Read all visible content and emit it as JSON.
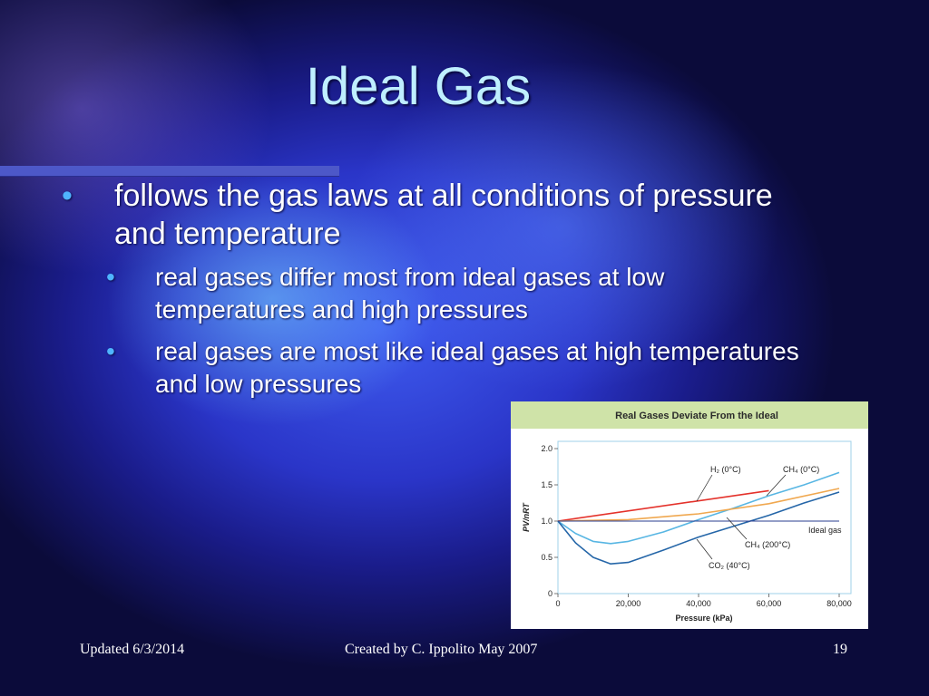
{
  "slide": {
    "title": "Ideal Gas",
    "bullets": [
      "follows the gas laws at all conditions of pressure and temperature"
    ],
    "sub_bullets": [
      "real gases differ most from ideal gases at low temperatures and high pressures",
      "real gases are most like ideal gases at high temperatures and low pressures"
    ],
    "footer": {
      "left": "Updated 6/3/2014",
      "center": "Created by C. Ippolito May 2007",
      "right": "19"
    }
  },
  "chart_data": {
    "type": "line",
    "title": "Real Gases Deviate From the Ideal",
    "xlabel": "Pressure (kPa)",
    "ylabel": "PV/nRT",
    "xlim": [
      0,
      80000
    ],
    "ylim": [
      0,
      2.0
    ],
    "x_ticks": [
      "0",
      "20,000",
      "40,000",
      "60,000",
      "80,000"
    ],
    "y_ticks": [
      "0",
      "0.5",
      "1.0",
      "1.5",
      "2.0"
    ],
    "grid": false,
    "series": [
      {
        "name": "H2 (0°C)",
        "color": "#e4322b",
        "x": [
          0,
          60000
        ],
        "y": [
          1.0,
          1.42
        ]
      },
      {
        "name": "CH4 (0°C)",
        "color": "#58b6e3",
        "x": [
          0,
          5000,
          10000,
          15000,
          20000,
          30000,
          40000,
          50000,
          60000,
          70000,
          80000
        ],
        "y": [
          1.0,
          0.83,
          0.72,
          0.69,
          0.72,
          0.85,
          1.02,
          1.18,
          1.35,
          1.5,
          1.67
        ]
      },
      {
        "name": "CH4 (200°C)",
        "color": "#f0a850",
        "x": [
          0,
          20000,
          40000,
          60000,
          80000
        ],
        "y": [
          1.0,
          1.02,
          1.1,
          1.24,
          1.45
        ]
      },
      {
        "name": "CO2 (40°C)",
        "color": "#2566a8",
        "x": [
          0,
          5000,
          10000,
          15000,
          20000,
          30000,
          40000,
          50000,
          60000,
          70000,
          80000
        ],
        "y": [
          1.0,
          0.7,
          0.5,
          0.41,
          0.43,
          0.6,
          0.78,
          0.93,
          1.08,
          1.25,
          1.4
        ]
      },
      {
        "name": "Ideal gas",
        "color": "#2a3c8f",
        "x": [
          0,
          80000
        ],
        "y": [
          1.0,
          1.0
        ]
      }
    ],
    "labels": {
      "h2": "H₂ (0°C)",
      "ch4_0": "CH₄ (0°C)",
      "ideal": "Ideal gas",
      "ch4_200": "CH₄ (200°C)",
      "co2": "CO₂ (40°C)"
    }
  }
}
